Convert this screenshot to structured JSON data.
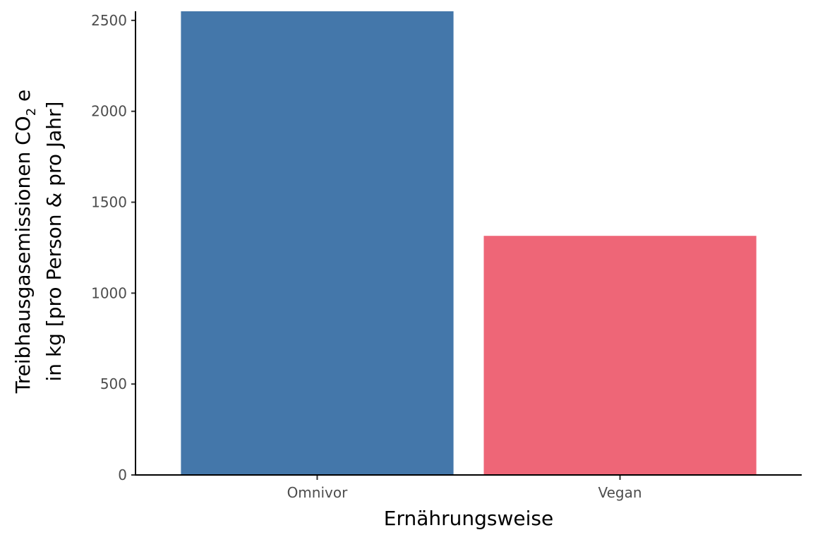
{
  "chart_data": {
    "type": "bar",
    "categories": [
      "Omnivor",
      "Vegan"
    ],
    "values": [
      2550,
      1315
    ],
    "colors": [
      "#4477aa",
      "#ee6677"
    ],
    "xlabel": "Ernährungsweise",
    "ylabel": {
      "line1_main": "Treibhausgasemissionen  CO",
      "line1_sub": "2",
      "line1_end": " e",
      "line2": "in kg [pro Person & pro Jahr]"
    },
    "yticks": [
      0,
      500,
      1000,
      1500,
      2000,
      2500
    ],
    "ylim": [
      0,
      2550
    ],
    "grid": false,
    "legend": "none"
  }
}
